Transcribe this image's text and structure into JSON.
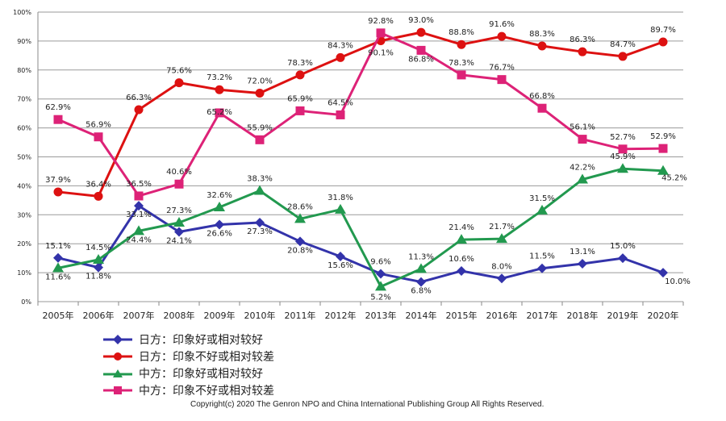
{
  "chart_data": {
    "type": "line",
    "title": "",
    "xlabel": "",
    "ylabel": "",
    "ylim": [
      0,
      100
    ],
    "y_ticks": [
      "0%",
      "10%",
      "20%",
      "30%",
      "40%",
      "50%",
      "60%",
      "70%",
      "80%",
      "90%",
      "100%"
    ],
    "grid": true,
    "legend_position": "bottom-left",
    "categories": [
      "2005年",
      "2006年",
      "2007年",
      "2008年",
      "2009年",
      "2010年",
      "2011年",
      "2012年",
      "2013年",
      "2014年",
      "2015年",
      "2016年",
      "2017年",
      "2018年",
      "2019年",
      "2020年"
    ],
    "series": [
      {
        "name": "日方：印象好或相对较好",
        "color": "#3333aa",
        "marker": "diamond",
        "values": [
          15.1,
          11.8,
          33.1,
          24.1,
          26.6,
          27.3,
          20.8,
          15.6,
          9.6,
          6.8,
          10.6,
          8.0,
          11.5,
          13.1,
          15.0,
          10.0
        ],
        "labels": [
          "15.1%",
          "11.8%",
          "33.1%",
          "24.1%",
          "26.6%",
          "27.3%",
          "20.8%",
          "15.6%",
          "9.6%",
          "6.8%",
          "10.6%",
          "8.0%",
          "11.5%",
          "13.1%",
          "15.0%",
          "10.0%"
        ]
      },
      {
        "name": "日方：印象不好或相对较差",
        "color": "#dd1111",
        "marker": "circle",
        "values": [
          37.9,
          36.4,
          66.3,
          75.6,
          73.2,
          72.0,
          78.3,
          84.3,
          90.1,
          93.0,
          88.8,
          91.6,
          88.3,
          86.3,
          84.7,
          89.7
        ],
        "labels": [
          "37.9%",
          "36.4%",
          "66.3%",
          "75.6%",
          "73.2%",
          "72.0%",
          "78.3%",
          "84.3%",
          "90.1%",
          "93.0%",
          "88.8%",
          "91.6%",
          "88.3%",
          "86.3%",
          "84.7%",
          "89.7%"
        ]
      },
      {
        "name": "中方：印象好或相对较好",
        "color": "#22994f",
        "marker": "triangle",
        "values": [
          11.6,
          14.5,
          24.4,
          27.3,
          32.6,
          38.3,
          28.6,
          31.8,
          5.2,
          11.3,
          21.4,
          21.7,
          31.5,
          42.2,
          45.9,
          45.2
        ],
        "labels": [
          "11.6%",
          "14.5%",
          "24.4%",
          "27.3%",
          "32.6%",
          "38.3%",
          "28.6%",
          "31.8%",
          "5.2%",
          "11.3%",
          "21.4%",
          "21.7%",
          "31.5%",
          "42.2%",
          "45.9%",
          "45.2%"
        ]
      },
      {
        "name": "中方：印象不好或相对较差",
        "color": "#dd2277",
        "marker": "square",
        "values": [
          62.9,
          56.9,
          36.5,
          40.6,
          65.2,
          55.9,
          65.9,
          64.5,
          92.8,
          86.8,
          78.3,
          76.7,
          66.8,
          56.1,
          52.7,
          52.9
        ],
        "labels": [
          "62.9%",
          "56.9%",
          "36.5%",
          "40.6%",
          "65.2%",
          "55.9%",
          "65.9%",
          "64.5%",
          "92.8%",
          "86.8%",
          "78.3%",
          "76.7%",
          "66.8%",
          "56.1%",
          "52.7%",
          "52.9%"
        ]
      }
    ]
  },
  "copyright": "Copyright(c) 2020 The Genron NPO and China International Publishing Group All Rights Reserved."
}
